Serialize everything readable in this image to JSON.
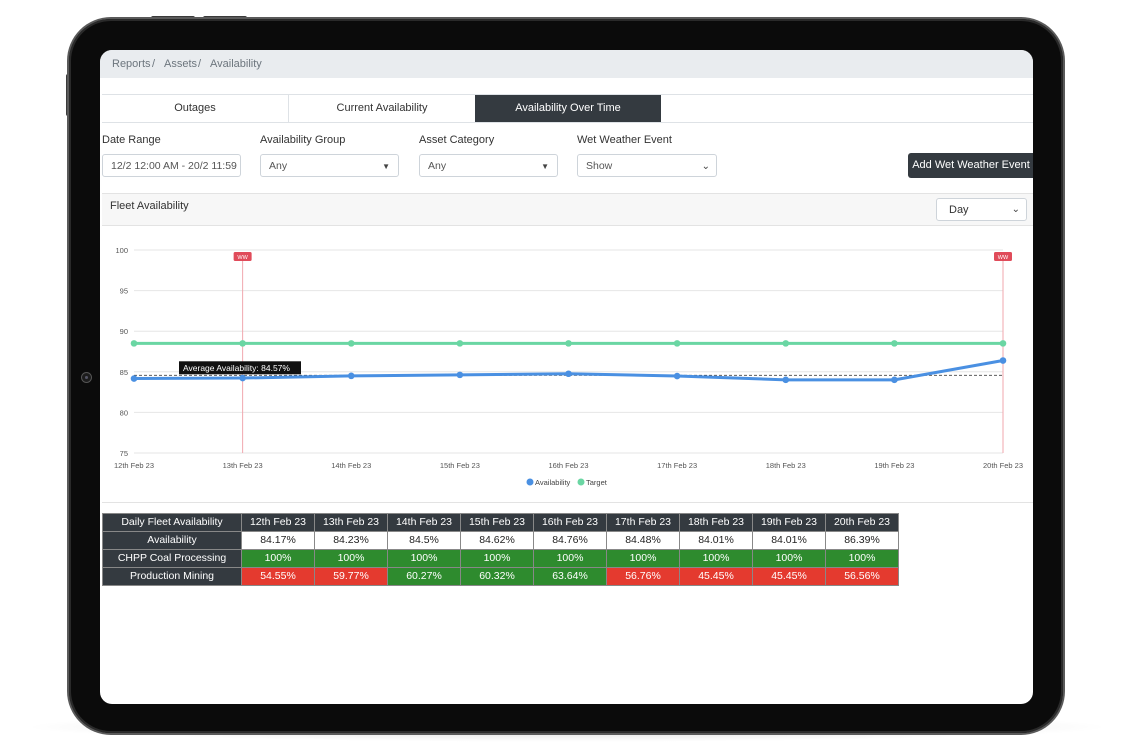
{
  "breadcrumb": [
    "Reports",
    "Assets",
    "Availability"
  ],
  "tabs": [
    {
      "label": "Outages",
      "active": false
    },
    {
      "label": "Current Availability",
      "active": false
    },
    {
      "label": "Availability Over Time",
      "active": true
    }
  ],
  "filters": {
    "date_range": {
      "label": "Date Range",
      "value": "12/2 12:00 AM - 20/2 11:59"
    },
    "availability_group": {
      "label": "Availability Group",
      "value": "Any"
    },
    "asset_category": {
      "label": "Asset Category",
      "value": "Any"
    },
    "wet_weather_event": {
      "label": "Wet Weather Event",
      "value": "Show"
    }
  },
  "add_button": "Add Wet Weather Event",
  "card": {
    "title": "Fleet Availability",
    "period": "Day"
  },
  "chart_data": {
    "type": "line",
    "x": [
      "12th Feb 23",
      "13th Feb 23",
      "14th Feb 23",
      "15th Feb 23",
      "16th Feb 23",
      "17th Feb 23",
      "18th Feb 23",
      "19th Feb 23",
      "20th Feb 23"
    ],
    "series": [
      {
        "name": "Availability",
        "color": "#4a90e2",
        "values": [
          84.17,
          84.23,
          84.5,
          84.62,
          84.76,
          84.48,
          84.01,
          84.01,
          86.39
        ]
      },
      {
        "name": "Target",
        "color": "#6ad6a3",
        "values": [
          88.5,
          88.5,
          88.5,
          88.5,
          88.5,
          88.5,
          88.5,
          88.5,
          88.5
        ]
      }
    ],
    "ylim": [
      75,
      100
    ],
    "yticks": [
      "75",
      "80",
      "85",
      "90",
      "95",
      "100"
    ],
    "grid": true,
    "legend": "bottom",
    "average": {
      "label": "Average Availability: 84.57%",
      "value": 84.57
    },
    "event_markers": [
      {
        "label": "WW",
        "x": "13th Feb 23"
      },
      {
        "label": "WW",
        "x": "20th Feb 23"
      }
    ]
  },
  "table": {
    "header": [
      "Daily Fleet Availability",
      "12th Feb 23",
      "13th Feb 23",
      "14th Feb 23",
      "15th Feb 23",
      "16th Feb 23",
      "17th Feb 23",
      "18th Feb 23",
      "19th Feb 23",
      "20th Feb 23"
    ],
    "rows": [
      {
        "label": "Availability",
        "cells": [
          {
            "v": "84.17%",
            "s": "nv"
          },
          {
            "v": "84.23%",
            "s": "nv"
          },
          {
            "v": "84.5%",
            "s": "nv"
          },
          {
            "v": "84.62%",
            "s": "nv"
          },
          {
            "v": "84.76%",
            "s": "nv"
          },
          {
            "v": "84.48%",
            "s": "nv"
          },
          {
            "v": "84.01%",
            "s": "nv"
          },
          {
            "v": "84.01%",
            "s": "nv"
          },
          {
            "v": "86.39%",
            "s": "nv"
          }
        ]
      },
      {
        "label": "CHPP Coal Processing",
        "cells": [
          {
            "v": "100%",
            "s": "green"
          },
          {
            "v": "100%",
            "s": "green"
          },
          {
            "v": "100%",
            "s": "green"
          },
          {
            "v": "100%",
            "s": "green"
          },
          {
            "v": "100%",
            "s": "green"
          },
          {
            "v": "100%",
            "s": "green"
          },
          {
            "v": "100%",
            "s": "green"
          },
          {
            "v": "100%",
            "s": "green"
          },
          {
            "v": "100%",
            "s": "green"
          }
        ]
      },
      {
        "label": "Production Mining",
        "cells": [
          {
            "v": "54.55%",
            "s": "red"
          },
          {
            "v": "59.77%",
            "s": "red"
          },
          {
            "v": "60.27%",
            "s": "green"
          },
          {
            "v": "60.32%",
            "s": "green"
          },
          {
            "v": "63.64%",
            "s": "green"
          },
          {
            "v": "56.76%",
            "s": "red"
          },
          {
            "v": "45.45%",
            "s": "red"
          },
          {
            "v": "45.45%",
            "s": "red"
          },
          {
            "v": "56.56%",
            "s": "red"
          }
        ]
      }
    ]
  }
}
